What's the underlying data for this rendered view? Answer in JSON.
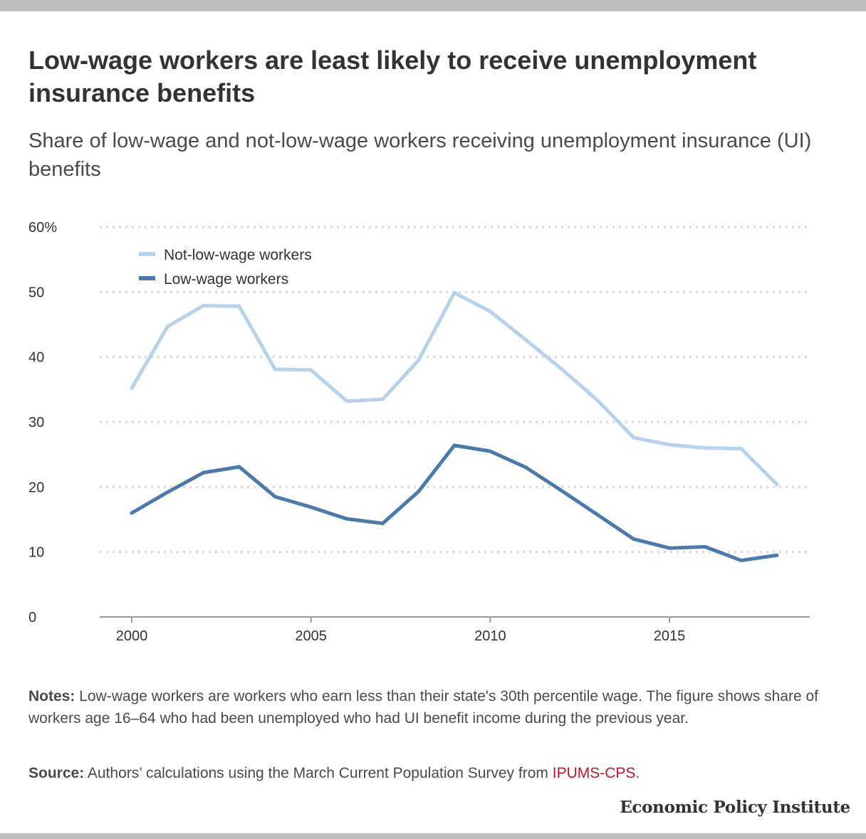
{
  "title": "Low-wage workers are least likely to receive unemployment insurance benefits",
  "subtitle": "Share of low-wage and not-low-wage workers receiving unemployment insurance (UI) benefits",
  "notes": {
    "label": "Notes:",
    "text": " Low-wage workers are workers who earn less than their state's 30th percentile wage. The figure shows share of workers age 16–64 who had been unemployed who had UI benefit income during the previous year."
  },
  "source": {
    "label": "Source:",
    "text": " Authors’ calculations using the March Current Population Survey from ",
    "link": "IPUMS-CPS",
    "end": "."
  },
  "brand": "Economic Policy Institute",
  "colors": {
    "not_low_wage": "#b7d2ec",
    "low_wage": "#4a79ad",
    "grid": "#dcdcdc",
    "axis": "#9a9a9a",
    "link": "#c8102e"
  },
  "chart_data": {
    "type": "line",
    "x": [
      2000,
      2001,
      2002,
      2003,
      2004,
      2005,
      2006,
      2007,
      2008,
      2009,
      2010,
      2011,
      2012,
      2013,
      2014,
      2015,
      2016,
      2017,
      2018
    ],
    "series": [
      {
        "name": "Not-low-wage workers",
        "color": "#b7d2ec",
        "values": [
          35.2,
          44.7,
          47.9,
          47.8,
          38.1,
          38.0,
          33.2,
          33.5,
          39.5,
          49.9,
          47.0,
          42.6,
          38.1,
          33.3,
          27.6,
          26.5,
          26.0,
          25.9,
          20.4
        ]
      },
      {
        "name": "Low-wage workers",
        "color": "#4a79ad",
        "values": [
          16.0,
          19.2,
          22.2,
          23.1,
          18.5,
          16.9,
          15.1,
          14.4,
          19.3,
          26.4,
          25.5,
          23.0,
          19.4,
          15.7,
          12.0,
          10.6,
          10.8,
          8.7,
          9.5
        ]
      }
    ],
    "ylim": [
      0,
      60
    ],
    "xlim": [
      1999.1,
      2019.0
    ],
    "y_ticks": [
      0,
      10,
      20,
      30,
      40,
      50,
      60
    ],
    "y_tick_labels": [
      "0",
      "10",
      "20",
      "30",
      "40",
      "50",
      "60%"
    ],
    "x_ticks": [
      2000,
      2005,
      2010,
      2015
    ],
    "x_tick_labels": [
      "2000",
      "2005",
      "2010",
      "2015"
    ],
    "grid": true,
    "legend_position": "top-left",
    "xlabel": "",
    "ylabel": ""
  }
}
